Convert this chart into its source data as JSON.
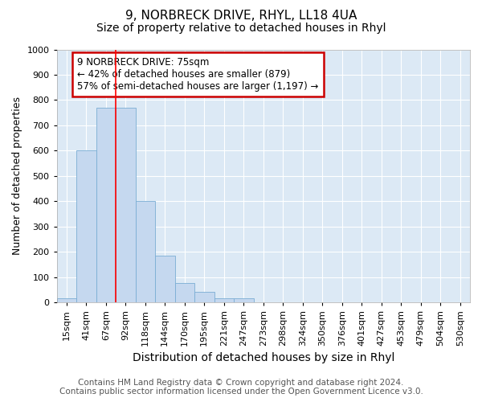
{
  "title": "9, NORBRECK DRIVE, RHYL, LL18 4UA",
  "subtitle": "Size of property relative to detached houses in Rhyl",
  "xlabel": "Distribution of detached houses by size in Rhyl",
  "ylabel": "Number of detached properties",
  "categories": [
    "15sqm",
    "41sqm",
    "67sqm",
    "92sqm",
    "118sqm",
    "144sqm",
    "170sqm",
    "195sqm",
    "221sqm",
    "247sqm",
    "273sqm",
    "298sqm",
    "324sqm",
    "350sqm",
    "376sqm",
    "401sqm",
    "427sqm",
    "453sqm",
    "479sqm",
    "504sqm",
    "530sqm"
  ],
  "values": [
    15,
    600,
    770,
    770,
    400,
    185,
    75,
    40,
    15,
    15,
    0,
    0,
    0,
    0,
    0,
    0,
    0,
    0,
    0,
    0,
    0
  ],
  "bar_color": "#c5d8ef",
  "bar_edge_color": "#7aadd4",
  "background_color": "#ffffff",
  "plot_bg_color": "#dce9f5",
  "grid_color": "#ffffff",
  "ylim": [
    0,
    1000
  ],
  "yticks": [
    0,
    100,
    200,
    300,
    400,
    500,
    600,
    700,
    800,
    900,
    1000
  ],
  "annotation_text": "9 NORBRECK DRIVE: 75sqm\n← 42% of detached houses are smaller (879)\n57% of semi-detached houses are larger (1,197) →",
  "annotation_border_color": "#cc0000",
  "red_line_x": 2.5,
  "footer_line1": "Contains HM Land Registry data © Crown copyright and database right 2024.",
  "footer_line2": "Contains public sector information licensed under the Open Government Licence v3.0.",
  "title_fontsize": 11,
  "subtitle_fontsize": 10,
  "xlabel_fontsize": 10,
  "ylabel_fontsize": 9,
  "tick_fontsize": 8,
  "footer_fontsize": 7.5,
  "ann_fontsize": 8.5
}
